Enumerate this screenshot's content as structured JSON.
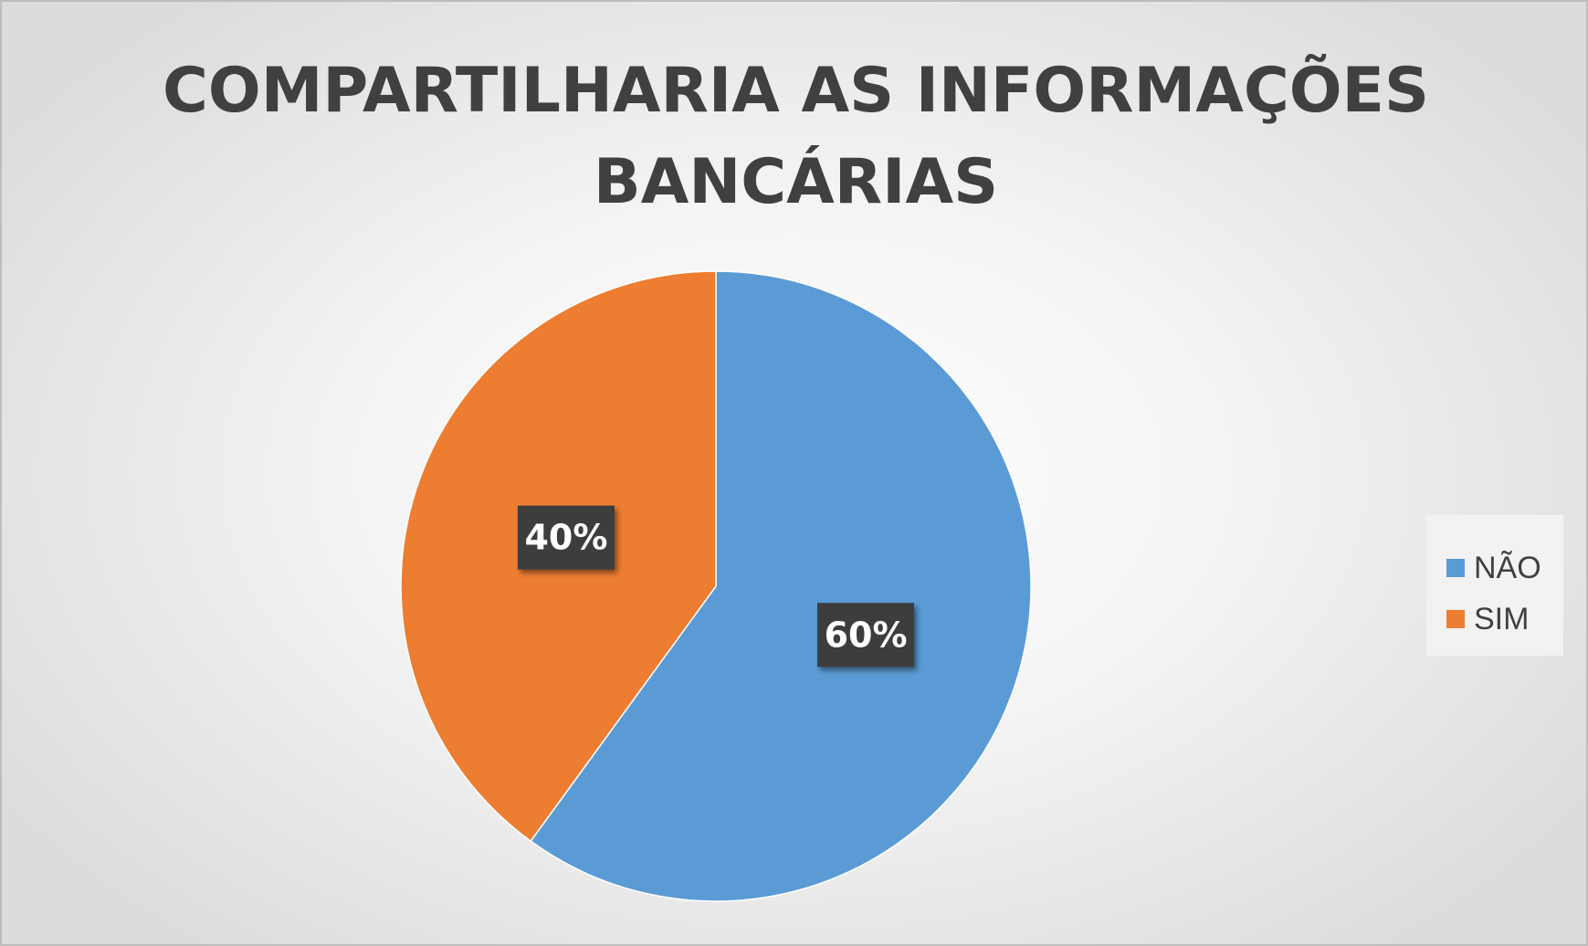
{
  "chart_data": {
    "type": "pie",
    "title_lines": [
      "COMPARTILHARIA AS INFORMAÇÕES",
      "BANCÁRIAS"
    ],
    "slices": [
      {
        "name": "NÃO",
        "value": 60,
        "label": "60%",
        "color": "#5b9bd5"
      },
      {
        "name": "SIM",
        "value": 40,
        "label": "40%",
        "color": "#ed7d31"
      }
    ],
    "legend": {
      "placement": "right",
      "entries": [
        {
          "name": "NÃO",
          "color": "#5b9bd5"
        },
        {
          "name": "SIM",
          "color": "#ed7d31"
        }
      ]
    },
    "start_angle_deg": 0,
    "direction": "clockwise"
  }
}
